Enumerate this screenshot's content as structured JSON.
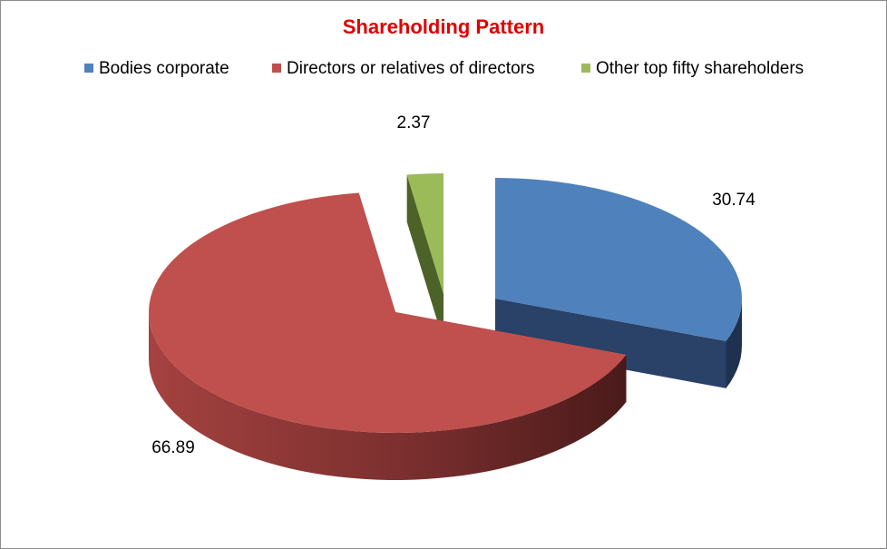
{
  "chart_data": {
    "type": "pie",
    "title": "Shareholding Pattern",
    "title_color": "#e00000",
    "legend_position": "top",
    "series": [
      {
        "name": "Bodies corporate",
        "value": 30.74,
        "color": "#4f81bd"
      },
      {
        "name": "Directors or relatives of directors",
        "value": 66.89,
        "color": "#c0504d"
      },
      {
        "name": "Other top fifty shareholders",
        "value": 2.37,
        "color": "#9bbb59"
      }
    ]
  }
}
